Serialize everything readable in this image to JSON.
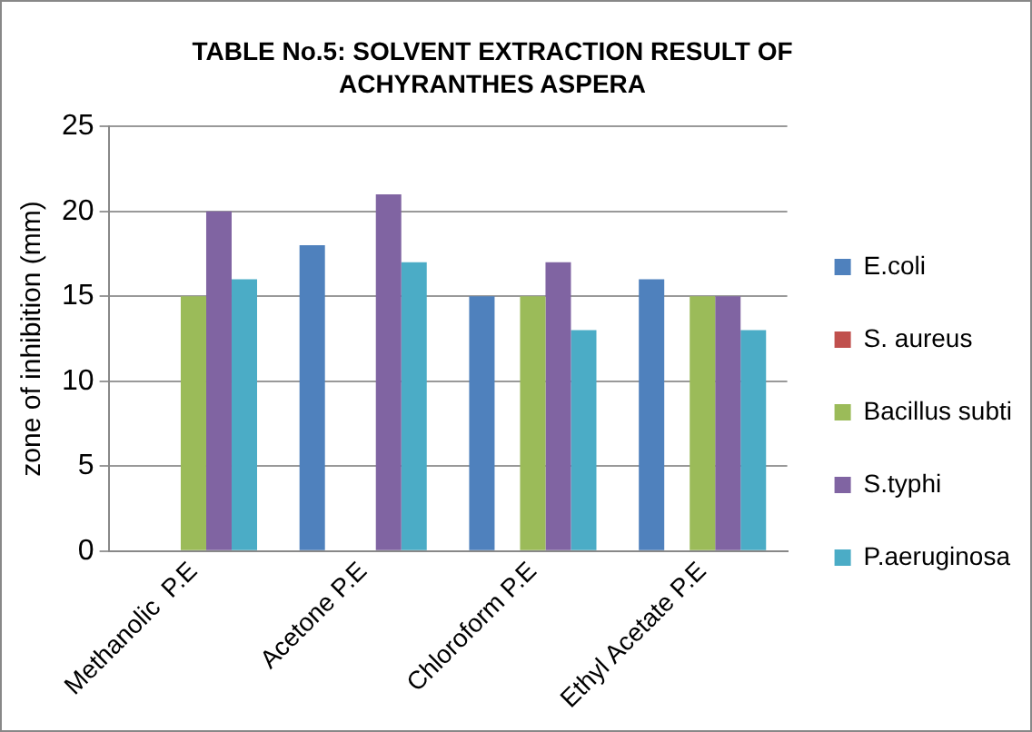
{
  "chart_data": {
    "type": "bar",
    "title": "TABLE No.5: SOLVENT EXTRACTION RESULT OF ACHYRANTHES ASPERA",
    "ylabel": "zone of inhibition (mm)",
    "categories": [
      "Methanolic  P.E",
      "Acetone P.E",
      "Chloroform P.E",
      "Ethyl Acetate P.E"
    ],
    "series": [
      {
        "name": "E.coli",
        "color": "#4f81bd",
        "values": [
          0,
          18,
          15,
          16
        ]
      },
      {
        "name": "S. aureus",
        "color": "#c0504d",
        "values": [
          0,
          0,
          0,
          0
        ]
      },
      {
        "name": "Bacillus subti",
        "color": "#9bbb59",
        "values": [
          15,
          0,
          15,
          15
        ]
      },
      {
        "name": "S.typhi",
        "color": "#8064a2",
        "values": [
          20,
          21,
          17,
          15
        ]
      },
      {
        "name": "P.aeruginosa",
        "color": "#4bacc6",
        "values": [
          16,
          17,
          13,
          13
        ]
      }
    ],
    "ylim": [
      0,
      25
    ],
    "yticks": [
      0,
      5,
      10,
      15,
      20,
      25
    ],
    "grid": "y",
    "legend": "right"
  }
}
